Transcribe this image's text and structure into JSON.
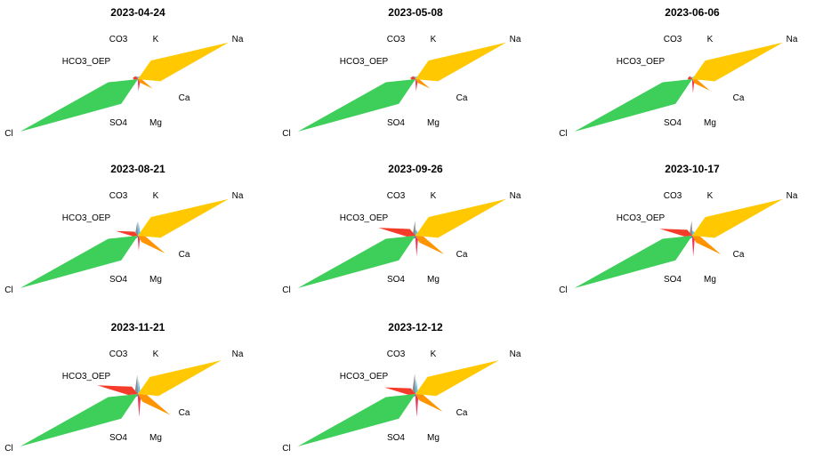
{
  "colors": {
    "CO3": "#8c8c8c",
    "K": "#5bc3f0",
    "Na": "#ffc800",
    "Ca": "#ff9400",
    "Mg": "#f03456",
    "SO4": "#1e6fe0",
    "Cl": "#3ecf5a",
    "HCO3_OEP": "#f53c2a"
  },
  "chart_data": [
    {
      "type": "stiff-star",
      "title": "2023-04-24",
      "axes": [
        "K",
        "Na",
        "Ca",
        "Mg",
        "SO4",
        "Cl",
        "HCO3_OEP",
        "CO3"
      ],
      "values": {
        "K": 0.05,
        "Na": 1.0,
        "Ca": 0.28,
        "Mg": 0.26,
        "SO4": 0.02,
        "Cl": 1.0,
        "HCO3_OEP": 0.07,
        "CO3": 0.05
      }
    },
    {
      "type": "stiff-star",
      "title": "2023-05-08",
      "axes": [
        "K",
        "Na",
        "Ca",
        "Mg",
        "SO4",
        "Cl",
        "HCO3_OEP",
        "CO3"
      ],
      "values": {
        "K": 0.05,
        "Na": 1.0,
        "Ca": 0.28,
        "Mg": 0.26,
        "SO4": 0.02,
        "Cl": 1.0,
        "HCO3_OEP": 0.07,
        "CO3": 0.05
      }
    },
    {
      "type": "stiff-star",
      "title": "2023-06-06",
      "axes": [
        "K",
        "Na",
        "Ca",
        "Mg",
        "SO4",
        "Cl",
        "HCO3_OEP",
        "CO3"
      ],
      "values": {
        "K": 0.04,
        "Na": 1.0,
        "Ca": 0.34,
        "Mg": 0.3,
        "SO4": 0.02,
        "Cl": 1.0,
        "HCO3_OEP": 0.06,
        "CO3": 0.04
      }
    },
    {
      "type": "stiff-star",
      "title": "2023-08-21",
      "axes": [
        "K",
        "Na",
        "Ca",
        "Mg",
        "SO4",
        "Cl",
        "HCO3_OEP",
        "CO3"
      ],
      "values": {
        "K": 0.33,
        "Na": 1.0,
        "Ca": 0.52,
        "Mg": 0.33,
        "SO4": 0.04,
        "Cl": 1.0,
        "HCO3_OEP": 0.3,
        "CO3": 0.33
      }
    },
    {
      "type": "stiff-star",
      "title": "2023-09-26",
      "axes": [
        "K",
        "Na",
        "Ca",
        "Mg",
        "SO4",
        "Cl",
        "HCO3_OEP",
        "CO3"
      ],
      "values": {
        "K": 0.15,
        "Na": 1.0,
        "Ca": 0.55,
        "Mg": 0.45,
        "SO4": 0.06,
        "Cl": 1.0,
        "HCO3_OEP": 0.5,
        "CO3": 0.35
      }
    },
    {
      "type": "stiff-star",
      "title": "2023-10-17",
      "axes": [
        "K",
        "Na",
        "Ca",
        "Mg",
        "SO4",
        "Cl",
        "HCO3_OEP",
        "CO3"
      ],
      "values": {
        "K": 0.12,
        "Na": 1.0,
        "Ca": 0.55,
        "Mg": 0.45,
        "SO4": 0.05,
        "Cl": 1.0,
        "HCO3_OEP": 0.44,
        "CO3": 0.35
      }
    },
    {
      "type": "stiff-star",
      "title": "2023-11-21",
      "axes": [
        "K",
        "Na",
        "Ca",
        "Mg",
        "SO4",
        "Cl",
        "HCO3_OEP",
        "CO3"
      ],
      "values": {
        "K": 0.35,
        "Na": 0.92,
        "Ca": 0.62,
        "Mg": 0.5,
        "SO4": 0.05,
        "Cl": 1.0,
        "HCO3_OEP": 0.55,
        "CO3": 0.45
      }
    },
    {
      "type": "stiff-star",
      "title": "2023-12-12",
      "axes": [
        "K",
        "Na",
        "Ca",
        "Mg",
        "SO4",
        "Cl",
        "HCO3_OEP",
        "CO3"
      ],
      "values": {
        "K": 0.35,
        "Na": 0.92,
        "Ca": 0.52,
        "Mg": 0.5,
        "SO4": 0.05,
        "Cl": 1.0,
        "HCO3_OEP": 0.42,
        "CO3": 0.48
      }
    }
  ]
}
